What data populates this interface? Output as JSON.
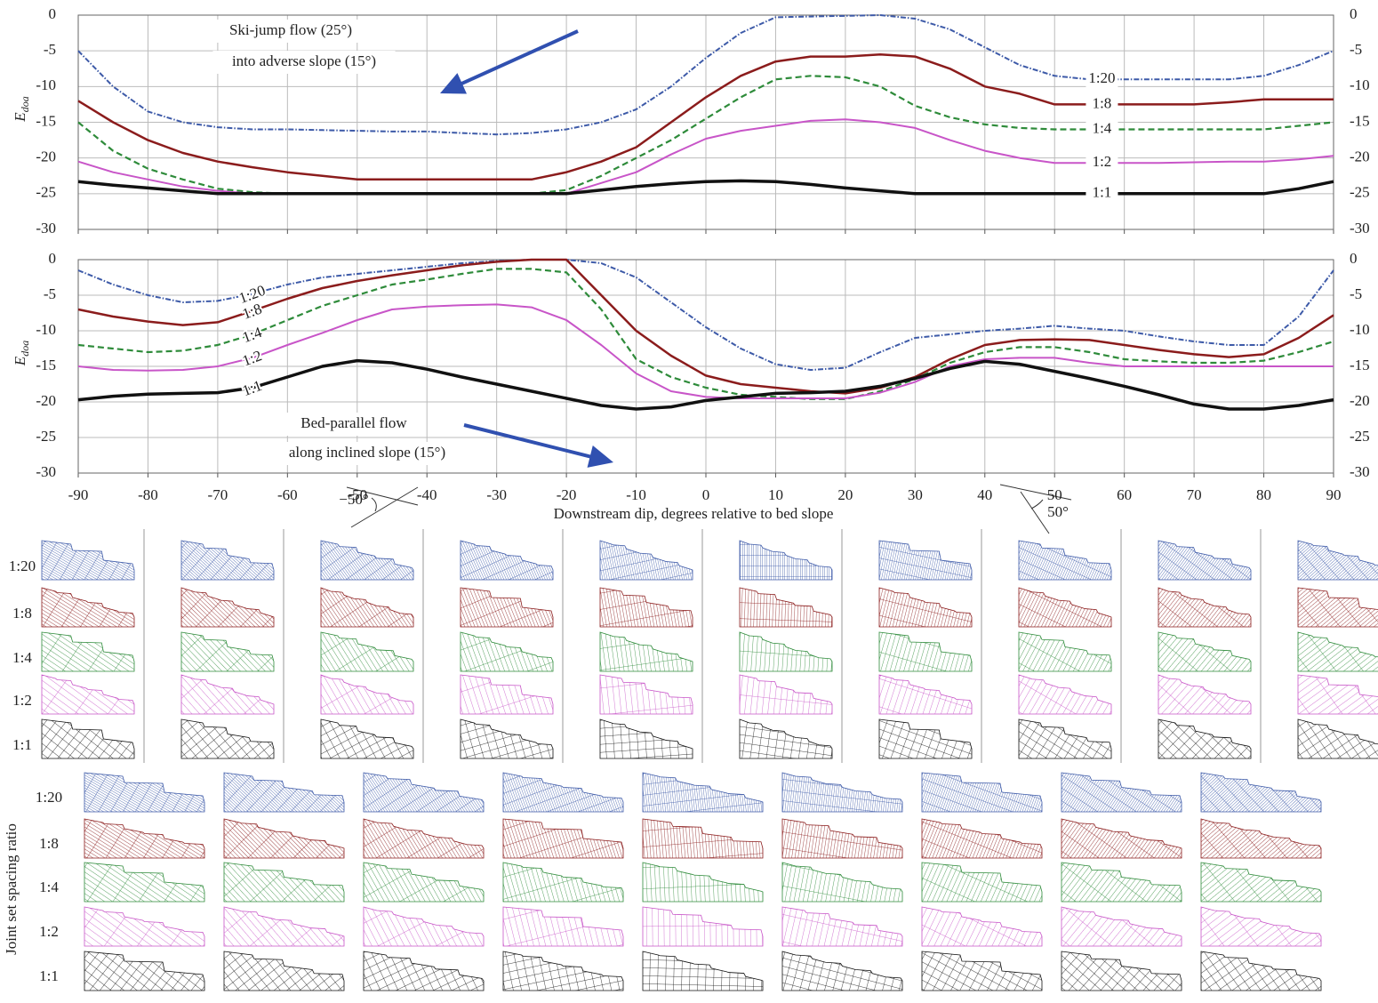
{
  "chart_data": [
    {
      "type": "line",
      "show_xtick_labels": false,
      "ylabel": {
        "base": "E",
        "subscript": "doa"
      },
      "annotations": [
        "Ski-jump flow (25°)",
        "into adverse slope (15°)"
      ],
      "x": [
        -90,
        -85,
        -80,
        -75,
        -70,
        -65,
        -60,
        -55,
        -50,
        -45,
        -40,
        -35,
        -30,
        -25,
        -20,
        -15,
        -10,
        -5,
        0,
        5,
        10,
        15,
        20,
        25,
        30,
        35,
        40,
        45,
        50,
        55,
        60,
        65,
        70,
        75,
        80,
        85,
        90
      ],
      "xlim": [
        -90,
        90
      ],
      "xticks": [
        -90,
        -80,
        -70,
        -60,
        -50,
        -40,
        -30,
        -20,
        -10,
        0,
        10,
        20,
        30,
        40,
        50,
        60,
        70,
        80,
        90
      ],
      "ylim": [
        -30,
        0
      ],
      "yticks": [
        0,
        -5,
        -10,
        -15,
        -20,
        -25,
        -30
      ],
      "grid": true,
      "series": [
        {
          "name": "1:20",
          "color": "#3d5aa8",
          "dash": "6,2,1.5,2",
          "width": 2,
          "values": [
            -5,
            -10,
            -13.5,
            -15,
            -15.7,
            -16,
            -16,
            -16.1,
            -16.2,
            -16.3,
            -16.3,
            -16.5,
            -16.7,
            -16.5,
            -16,
            -15,
            -13.2,
            -10,
            -6,
            -2.5,
            -0.3,
            -0.2,
            -0.1,
            0,
            -0.5,
            -2,
            -4.5,
            -7,
            -8.5,
            -9,
            -9,
            -9,
            -9,
            -9,
            -8.5,
            -7,
            -5
          ]
        },
        {
          "name": "1:8",
          "color": "#8b1c1c",
          "dash": "none",
          "width": 2.5,
          "values": [
            -12,
            -15,
            -17.5,
            -19.3,
            -20.5,
            -21.3,
            -22,
            -22.5,
            -23,
            -23,
            -23,
            -23,
            -23,
            -23,
            -22,
            -20.5,
            -18.5,
            -15,
            -11.5,
            -8.5,
            -6.5,
            -5.8,
            -5.8,
            -5.5,
            -5.8,
            -7.5,
            -10,
            -11,
            -12.5,
            -12.5,
            -12.5,
            -12.5,
            -12.5,
            -12.2,
            -11.8,
            -11.8,
            -11.8
          ]
        },
        {
          "name": "1:4",
          "color": "#2e8b3a",
          "dash": "7,4",
          "width": 2.2,
          "values": [
            -15,
            -19,
            -21.5,
            -23,
            -24.3,
            -24.8,
            -25,
            -25,
            -25,
            -25,
            -25,
            -25,
            -25,
            -25,
            -24.5,
            -22.5,
            -20,
            -17.5,
            -14.5,
            -11.5,
            -9,
            -8.5,
            -8.7,
            -10,
            -12.7,
            -14.3,
            -15.3,
            -15.8,
            -16,
            -16,
            -16,
            -16,
            -16,
            -16,
            -16,
            -15.5,
            -15
          ]
        },
        {
          "name": "1:2",
          "color": "#c855c8",
          "dash": "none",
          "width": 2,
          "values": [
            -20.5,
            -22,
            -23,
            -24,
            -24.6,
            -25,
            -25,
            -25,
            -25,
            -25,
            -25,
            -25,
            -25,
            -25,
            -25,
            -23.5,
            -22,
            -19.5,
            -17.3,
            -16.2,
            -15.5,
            -14.8,
            -14.6,
            -15,
            -15.8,
            -17.5,
            -19,
            -20,
            -20.7,
            -20.7,
            -20.7,
            -20.7,
            -20.6,
            -20.5,
            -20.5,
            -20.2,
            -19.7
          ]
        },
        {
          "name": "1:1",
          "color": "#111111",
          "dash": "none",
          "width": 3.5,
          "values": [
            -23.3,
            -23.8,
            -24.2,
            -24.6,
            -25,
            -25,
            -25,
            -25,
            -25,
            -25,
            -25,
            -25,
            -25,
            -25,
            -25,
            -24.5,
            -24,
            -23.6,
            -23.3,
            -23.2,
            -23.3,
            -23.7,
            -24.2,
            -24.6,
            -25,
            -25,
            -25,
            -25,
            -25,
            -25,
            -25,
            -25,
            -25,
            -25,
            -25,
            -24.3,
            -23.3
          ]
        }
      ]
    },
    {
      "type": "line",
      "show_xtick_labels": true,
      "xlabel": "Downstream dip, degrees relative to bed slope",
      "ylabel": {
        "base": "E",
        "subscript": "doa"
      },
      "annotations": [
        "Bed-parallel flow",
        "along inclined slope (15°)"
      ],
      "x": [
        -90,
        -85,
        -80,
        -75,
        -70,
        -65,
        -60,
        -55,
        -50,
        -45,
        -40,
        -35,
        -30,
        -25,
        -20,
        -15,
        -10,
        -5,
        0,
        5,
        10,
        15,
        20,
        25,
        30,
        35,
        40,
        45,
        50,
        55,
        60,
        65,
        70,
        75,
        80,
        85,
        90
      ],
      "xlim": [
        -90,
        90
      ],
      "xticks": [
        -90,
        -80,
        -70,
        -60,
        -50,
        -40,
        -30,
        -20,
        -10,
        0,
        10,
        20,
        30,
        40,
        50,
        60,
        70,
        80,
        90
      ],
      "ylim": [
        -30,
        0
      ],
      "yticks": [
        0,
        -5,
        -10,
        -15,
        -20,
        -25,
        -30
      ],
      "grid": true,
      "series": [
        {
          "name": "1:20",
          "color": "#3d5aa8",
          "dash": "6,2,1.5,2",
          "width": 2,
          "values": [
            -1.5,
            -3.5,
            -5,
            -6,
            -5.8,
            -4.8,
            -3.5,
            -2.5,
            -2,
            -1.5,
            -1,
            -0.5,
            -0.2,
            0,
            0,
            -0.5,
            -2.5,
            -6,
            -9.5,
            -12.5,
            -14.7,
            -15.5,
            -15.2,
            -13,
            -11,
            -10.5,
            -10,
            -9.7,
            -9.3,
            -9.7,
            -10,
            -10.8,
            -11.5,
            -12,
            -12,
            -8,
            -1.5
          ]
        },
        {
          "name": "1:8",
          "color": "#8b1c1c",
          "dash": "none",
          "width": 2.5,
          "values": [
            -7,
            -8,
            -8.7,
            -9.2,
            -8.8,
            -7.2,
            -5.5,
            -4,
            -3,
            -2.2,
            -1.5,
            -0.8,
            -0.3,
            0,
            0,
            -5,
            -10,
            -13.5,
            -16.3,
            -17.5,
            -18,
            -18.5,
            -18.8,
            -18,
            -16.5,
            -14,
            -12,
            -11.3,
            -11.2,
            -11.3,
            -12,
            -12.7,
            -13.3,
            -13.7,
            -13.3,
            -11,
            -7.8
          ]
        },
        {
          "name": "1:4",
          "color": "#2e8b3a",
          "dash": "7,4",
          "width": 2.2,
          "values": [
            -12,
            -12.5,
            -13,
            -12.8,
            -12,
            -10.5,
            -8.5,
            -6.5,
            -5,
            -3.5,
            -2.8,
            -2,
            -1.3,
            -1.3,
            -1.8,
            -7,
            -14,
            -16.5,
            -18,
            -19,
            -19.3,
            -19.6,
            -19.6,
            -18.5,
            -16.8,
            -14.5,
            -13,
            -12.3,
            -12.3,
            -13,
            -14,
            -14.3,
            -14.5,
            -14.5,
            -14.2,
            -13,
            -11.5
          ]
        },
        {
          "name": "1:2",
          "color": "#c855c8",
          "dash": "none",
          "width": 2,
          "values": [
            -15,
            -15.5,
            -15.6,
            -15.5,
            -15,
            -13.8,
            -12,
            -10.3,
            -8.5,
            -7,
            -6.6,
            -6.4,
            -6.3,
            -6.7,
            -8.5,
            -12,
            -16,
            -18.5,
            -19.3,
            -19.5,
            -19.5,
            -19.5,
            -19.5,
            -18.7,
            -17.2,
            -15,
            -14,
            -13.8,
            -13.8,
            -14.5,
            -15,
            -15,
            -15,
            -15,
            -15,
            -15,
            -15
          ]
        },
        {
          "name": "1:1",
          "color": "#111111",
          "dash": "none",
          "width": 3.5,
          "values": [
            -19.7,
            -19.2,
            -18.9,
            -18.8,
            -18.7,
            -18,
            -16.5,
            -15,
            -14.2,
            -14.5,
            -15.4,
            -16.5,
            -17.5,
            -18.5,
            -19.5,
            -20.5,
            -21,
            -20.7,
            -19.8,
            -19.3,
            -18.8,
            -18.7,
            -18.5,
            -17.8,
            -16.7,
            -15.3,
            -14.3,
            -14.7,
            -15.7,
            -16.7,
            -17.8,
            -19,
            -20.3,
            -21,
            -21,
            -20.5,
            -19.7
          ]
        }
      ]
    }
  ],
  "angle_notes": [
    "−50°",
    "50°"
  ],
  "thumbnails": {
    "axis_label": "Joint set spacing ratio"
  }
}
